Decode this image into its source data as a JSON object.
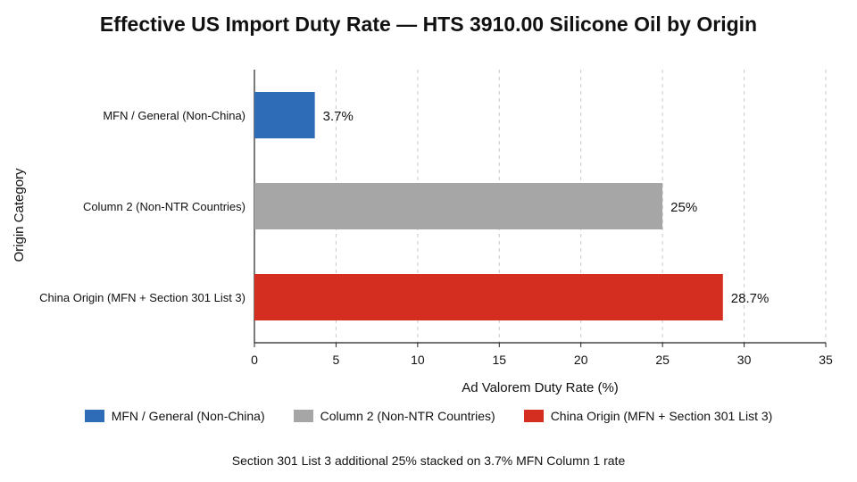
{
  "chart_data": {
    "type": "bar",
    "orientation": "horizontal",
    "title": "Effective US Import Duty Rate — HTS 3910.00 Silicone Oil by Origin",
    "xlabel": "Ad Valorem Duty Rate (%)",
    "ylabel": "Origin Category",
    "xlim": [
      0,
      35
    ],
    "xticks": [
      "0",
      "5",
      "10",
      "15",
      "20",
      "25",
      "30",
      "35"
    ],
    "grid": "vertical dashed",
    "categories": [
      "MFN / General (Non-China)",
      "Column 2 (Non-NTR Countries)",
      "China Origin (MFN + Section 301 List 3)"
    ],
    "values": [
      3.7,
      25,
      28.7
    ],
    "value_labels": [
      "3.7%",
      "25%",
      "28.7%"
    ],
    "colors": [
      "#2f6cb8",
      "#a6a6a6",
      "#d42e21"
    ],
    "legend_position": "bottom",
    "legend": [
      "MFN / General (Non-China)",
      "Column 2 (Non-NTR Countries)",
      "China Origin (MFN + Section 301 List 3)"
    ],
    "footnote": "Section 301 List 3 additional 25% stacked on 3.7% MFN Column 1 rate"
  }
}
